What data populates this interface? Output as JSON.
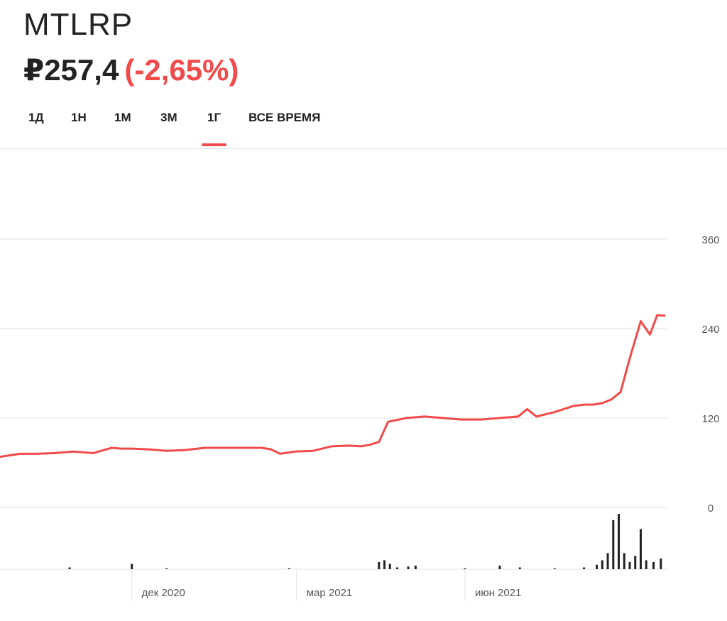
{
  "header": {
    "ticker": "MTLRP",
    "price": "₽257,4",
    "change": "(-2,65%)"
  },
  "tabs": [
    {
      "label": "1Д",
      "active": false
    },
    {
      "label": "1Н",
      "active": false
    },
    {
      "label": "1М",
      "active": false
    },
    {
      "label": "3М",
      "active": false
    },
    {
      "label": "1Г",
      "active": true
    },
    {
      "label": "ВСЕ ВРЕМЯ",
      "active": false
    }
  ],
  "colors": {
    "accent": "#f04a4a",
    "line": "#f04a4a",
    "volume": "#222222",
    "grid": "#e2e2e2"
  },
  "chart_data": {
    "type": "line",
    "title": "",
    "xlabel": "",
    "ylabel": "",
    "y_ticks": [
      "360",
      "240",
      "120",
      "0"
    ],
    "ylim": [
      0,
      360
    ],
    "grid": true,
    "x_ticks": [
      "дек 2020",
      "мар 2021",
      "июн 2021"
    ],
    "series": [
      {
        "x": [
          "2020-09-20",
          "2020-10-01",
          "2020-10-10",
          "2020-10-20",
          "2020-10-30",
          "2020-11-10",
          "2020-11-20",
          "2020-11-25",
          "2020-12-01",
          "2020-12-10",
          "2020-12-20",
          "2020-12-30",
          "2021-01-10",
          "2021-01-20",
          "2021-01-30",
          "2021-02-10",
          "2021-02-15",
          "2021-02-20",
          "2021-02-28",
          "2021-03-10",
          "2021-03-20",
          "2021-03-30",
          "2021-04-05",
          "2021-04-10",
          "2021-04-15",
          "2021-04-20",
          "2021-04-30",
          "2021-05-10",
          "2021-05-20",
          "2021-05-30",
          "2021-06-10",
          "2021-06-20",
          "2021-06-30",
          "2021-07-05",
          "2021-07-10",
          "2021-07-20",
          "2021-07-30",
          "2021-08-05",
          "2021-08-10",
          "2021-08-15",
          "2021-08-20",
          "2021-08-25",
          "2021-08-30",
          "2021-09-05",
          "2021-09-10",
          "2021-09-14",
          "2021-09-18"
        ],
        "values": [
          68,
          72,
          72,
          73,
          75,
          73,
          80,
          79,
          79,
          78,
          76,
          77,
          80,
          80,
          80,
          80,
          78,
          72,
          75,
          76,
          82,
          83,
          82,
          84,
          88,
          115,
          120,
          122,
          120,
          118,
          118,
          120,
          122,
          132,
          122,
          128,
          136,
          138,
          138,
          140,
          145,
          155,
          200,
          250,
          232,
          258,
          257.4
        ]
      }
    ],
    "volume": {
      "x": [
        "2020-10-28",
        "2020-12-01",
        "2020-12-20",
        "2021-02-25",
        "2021-04-15",
        "2021-04-18",
        "2021-04-21",
        "2021-04-25",
        "2021-05-01",
        "2021-05-05",
        "2021-06-01",
        "2021-06-20",
        "2021-07-01",
        "2021-07-20",
        "2021-08-05",
        "2021-08-12",
        "2021-08-15",
        "2021-08-18",
        "2021-08-21",
        "2021-08-24",
        "2021-08-27",
        "2021-08-30",
        "2021-09-02",
        "2021-09-05",
        "2021-09-08",
        "2021-09-12",
        "2021-09-16"
      ],
      "values": [
        2,
        6,
        1,
        1,
        8,
        10,
        6,
        2,
        3,
        4,
        1,
        4,
        2,
        1,
        2,
        5,
        10,
        18,
        55,
        62,
        18,
        8,
        15,
        45,
        10,
        8,
        12
      ]
    }
  }
}
